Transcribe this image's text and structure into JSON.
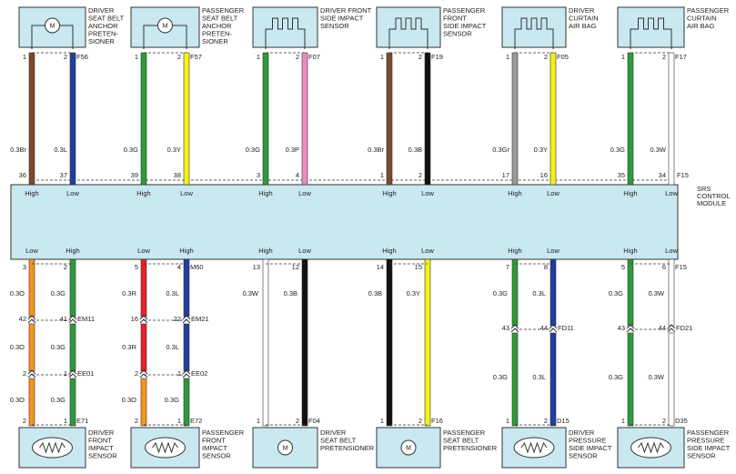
{
  "module": {
    "label": [
      "SRS",
      "CONTROL",
      "MODULE"
    ],
    "top_conn": "F15"
  },
  "top": [
    {
      "icon": "motor",
      "icon_label": "M",
      "label": [
        "DRIVER",
        "SEAT BELT",
        "ANCHOR",
        "PRETEN-",
        "SIONER"
      ],
      "pins": [
        "1",
        "2"
      ],
      "conn": "F56",
      "wires": [
        {
          "label": "0.3Br",
          "color": "#7b4a2e"
        },
        {
          "label": "0.3L",
          "color": "#1f3f9e"
        }
      ],
      "module_pins": [
        "36",
        "37"
      ],
      "module_labels": [
        "High",
        "Low"
      ]
    },
    {
      "icon": "motor",
      "icon_label": "M",
      "label": [
        "PASSENGER",
        "SEAT BELT",
        "ANCHOR",
        "PRETEN-",
        "SIONER"
      ],
      "pins": [
        "1",
        "2"
      ],
      "conn": "F57",
      "wires": [
        {
          "label": "0.3G",
          "color": "#2e9a3a"
        },
        {
          "label": "0.3Y",
          "color": "#f2f21a"
        }
      ],
      "module_pins": [
        "39",
        "38"
      ],
      "module_labels": [
        "High",
        "Low"
      ]
    },
    {
      "icon": "pulse",
      "label": [
        "DRIVER FRONT",
        "SIDE IMPACT",
        "SENSOR"
      ],
      "pins": [
        "1",
        "2"
      ],
      "conn": "F07",
      "wires": [
        {
          "label": "0.3G",
          "color": "#2e9a3a"
        },
        {
          "label": "0.3P",
          "color": "#f08ac0"
        }
      ],
      "module_pins": [
        "3",
        "4"
      ],
      "module_labels": [
        "High",
        "Low"
      ]
    },
    {
      "icon": "pulse",
      "label": [
        "PASSENGER",
        "FRONT",
        "SIDE IMPACT",
        "SENSOR"
      ],
      "pins": [
        "1",
        "2"
      ],
      "conn": "F19",
      "wires": [
        {
          "label": "0.3Br",
          "color": "#7b4a2e"
        },
        {
          "label": "0.3B",
          "color": "#111111"
        }
      ],
      "module_pins": [
        "1",
        "2"
      ],
      "module_labels": [
        "High",
        "Low"
      ]
    },
    {
      "icon": "pulse",
      "label": [
        "DRIVER",
        "CURTAIN",
        "AIR BAG"
      ],
      "pins": [
        "1",
        "2"
      ],
      "conn": "F05",
      "wires": [
        {
          "label": "0.3Gr",
          "color": "#9a9a9a"
        },
        {
          "label": "0.3Y",
          "color": "#f2f21a"
        }
      ],
      "module_pins": [
        "17",
        "16"
      ],
      "module_labels": [
        "High",
        "Low"
      ]
    },
    {
      "icon": "pulse",
      "label": [
        "PASSENGER",
        "CURTAIN",
        "AIR BAG"
      ],
      "pins": [
        "1",
        "2"
      ],
      "conn": "F17",
      "wires": [
        {
          "label": "0.3G",
          "color": "#2e9a3a"
        },
        {
          "label": "0.3W",
          "color": "#ffffff"
        }
      ],
      "module_pins": [
        "35",
        "34"
      ],
      "module_labels": [
        "High",
        "Low"
      ]
    }
  ],
  "bottom": [
    {
      "module_labels": [
        "Low",
        "High"
      ],
      "module_pins": [
        "3",
        "2"
      ],
      "sections": [
        [
          {
            "label": "0.3O",
            "color": "#f7941d"
          },
          {
            "label": "0.3G",
            "color": "#2e9a3a"
          }
        ],
        [
          {
            "label": "0.3O",
            "color": "#f7941d"
          },
          {
            "label": "0.3G",
            "color": "#2e9a3a"
          }
        ],
        [
          {
            "label": "0.3O",
            "color": "#f7941d"
          },
          {
            "label": "0.3G",
            "color": "#2e9a3a"
          }
        ]
      ],
      "joints": [
        {
          "pins": [
            "42",
            "41"
          ],
          "conn": "EM11"
        },
        {
          "pins": [
            "2",
            "1"
          ],
          "conn": "EE01"
        }
      ],
      "end_pins": [
        "2",
        "1"
      ],
      "end_conn": "E71",
      "icon": "resistor",
      "label": [
        "DRIVER",
        "FRONT",
        "IMPACT",
        "SENSOR"
      ]
    },
    {
      "module_labels": [
        "Low",
        "High"
      ],
      "module_pins": [
        "5",
        "4"
      ],
      "module_conn": "M60",
      "sections": [
        [
          {
            "label": "0.3R",
            "color": "#e8202a"
          },
          {
            "label": "0.3L",
            "color": "#1f3f9e"
          }
        ],
        [
          {
            "label": "0.3R",
            "color": "#e8202a"
          },
          {
            "label": "0.3L",
            "color": "#1f3f9e"
          }
        ],
        [
          {
            "label": "0.3O",
            "color": "#f7941d"
          },
          {
            "label": "0.3G",
            "color": "#2e9a3a"
          }
        ]
      ],
      "joints": [
        {
          "pins": [
            "16",
            "22"
          ],
          "conn": "EM21"
        },
        {
          "pins": [
            "2",
            "1"
          ],
          "conn": "EE02"
        }
      ],
      "end_pins": [
        "2",
        "1"
      ],
      "end_conn": "E72",
      "icon": "resistor",
      "label": [
        "PASSENGER",
        "FRONT",
        "IMPACT",
        "SENSOR"
      ]
    },
    {
      "module_labels": [
        "High",
        "Low"
      ],
      "module_pins": [
        "13",
        "12"
      ],
      "sections": [
        [
          {
            "label": "0.3W",
            "color": "#ffffff"
          },
          {
            "label": "0.3B",
            "color": "#111111"
          }
        ]
      ],
      "joints": [],
      "end_pins": [
        "1",
        "2"
      ],
      "end_conn": "F04",
      "icon": "motor",
      "icon_label": "M",
      "label": [
        "DRIVER",
        "SEAT BELT",
        "PRETENSIONER"
      ]
    },
    {
      "module_labels": [
        "High",
        "Low"
      ],
      "module_pins": [
        "14",
        "15"
      ],
      "sections": [
        [
          {
            "label": "0.3B",
            "color": "#111111"
          },
          {
            "label": "0.3Y",
            "color": "#f2f21a"
          }
        ]
      ],
      "joints": [],
      "end_pins": [
        "1",
        "2"
      ],
      "end_conn": "F16",
      "icon": "motor",
      "icon_label": "M",
      "label": [
        "PASSENGER",
        "SEAT BELT",
        "PRETENSIONER"
      ]
    },
    {
      "module_labels": [
        "High",
        "Low"
      ],
      "module_pins": [
        "7",
        "8"
      ],
      "sections": [
        [
          {
            "label": "0.3G",
            "color": "#2e9a3a"
          },
          {
            "label": "0.3L",
            "color": "#1f3f9e"
          }
        ],
        [
          {
            "label": "0.3G",
            "color": "#2e9a3a"
          },
          {
            "label": "0.3L",
            "color": "#1f3f9e"
          }
        ]
      ],
      "joints": [
        {
          "pins": [
            "43",
            "44"
          ],
          "conn": "FD11"
        }
      ],
      "end_pins": [
        "1",
        "2"
      ],
      "end_conn": "D15",
      "icon": "resistor",
      "label": [
        "DRIVER",
        "PRESSURE",
        "SIDE IMPACT",
        "SENSOR"
      ]
    },
    {
      "module_labels": [
        "High",
        "Low"
      ],
      "module_pins": [
        "5",
        "6"
      ],
      "module_conn": "F15",
      "sections": [
        [
          {
            "label": "0.3G",
            "color": "#2e9a3a"
          },
          {
            "label": "0.3W",
            "color": "#ffffff"
          }
        ],
        [
          {
            "label": "0.3G",
            "color": "#2e9a3a"
          },
          {
            "label": "0.3W",
            "color": "#ffffff"
          }
        ]
      ],
      "joints": [
        {
          "pins": [
            "43",
            "44"
          ],
          "conn": "FD21"
        }
      ],
      "end_pins": [
        "1",
        "2"
      ],
      "end_conn": "D35",
      "icon": "resistor",
      "label": [
        "PASSENGER",
        "PRESSURE",
        "SIDE IMPACT",
        "SENSOR"
      ]
    }
  ]
}
